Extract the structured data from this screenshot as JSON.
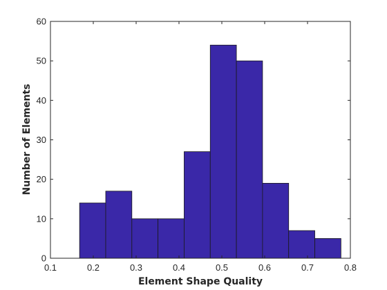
{
  "chart_data": {
    "type": "bar",
    "title": "",
    "xlabel": "Element Shape Quality",
    "ylabel": "Number of Elements",
    "xlim": [
      0.1,
      0.8
    ],
    "ylim": [
      0,
      60
    ],
    "xticks": [
      "0.1",
      "0.2",
      "0.3",
      "0.4",
      "0.5",
      "0.6",
      "0.7",
      "0.8"
    ],
    "yticks": [
      "0",
      "10",
      "20",
      "30",
      "40",
      "50",
      "60"
    ],
    "bin_edges": [
      0.168,
      0.229,
      0.29,
      0.351,
      0.412,
      0.473,
      0.534,
      0.595,
      0.656,
      0.717,
      0.778
    ],
    "values": [
      14,
      17,
      10,
      10,
      27,
      54,
      50,
      19,
      7,
      5
    ],
    "bar_color": "#3a28a8",
    "edge_color": "#1a1a1a",
    "grid": false
  }
}
